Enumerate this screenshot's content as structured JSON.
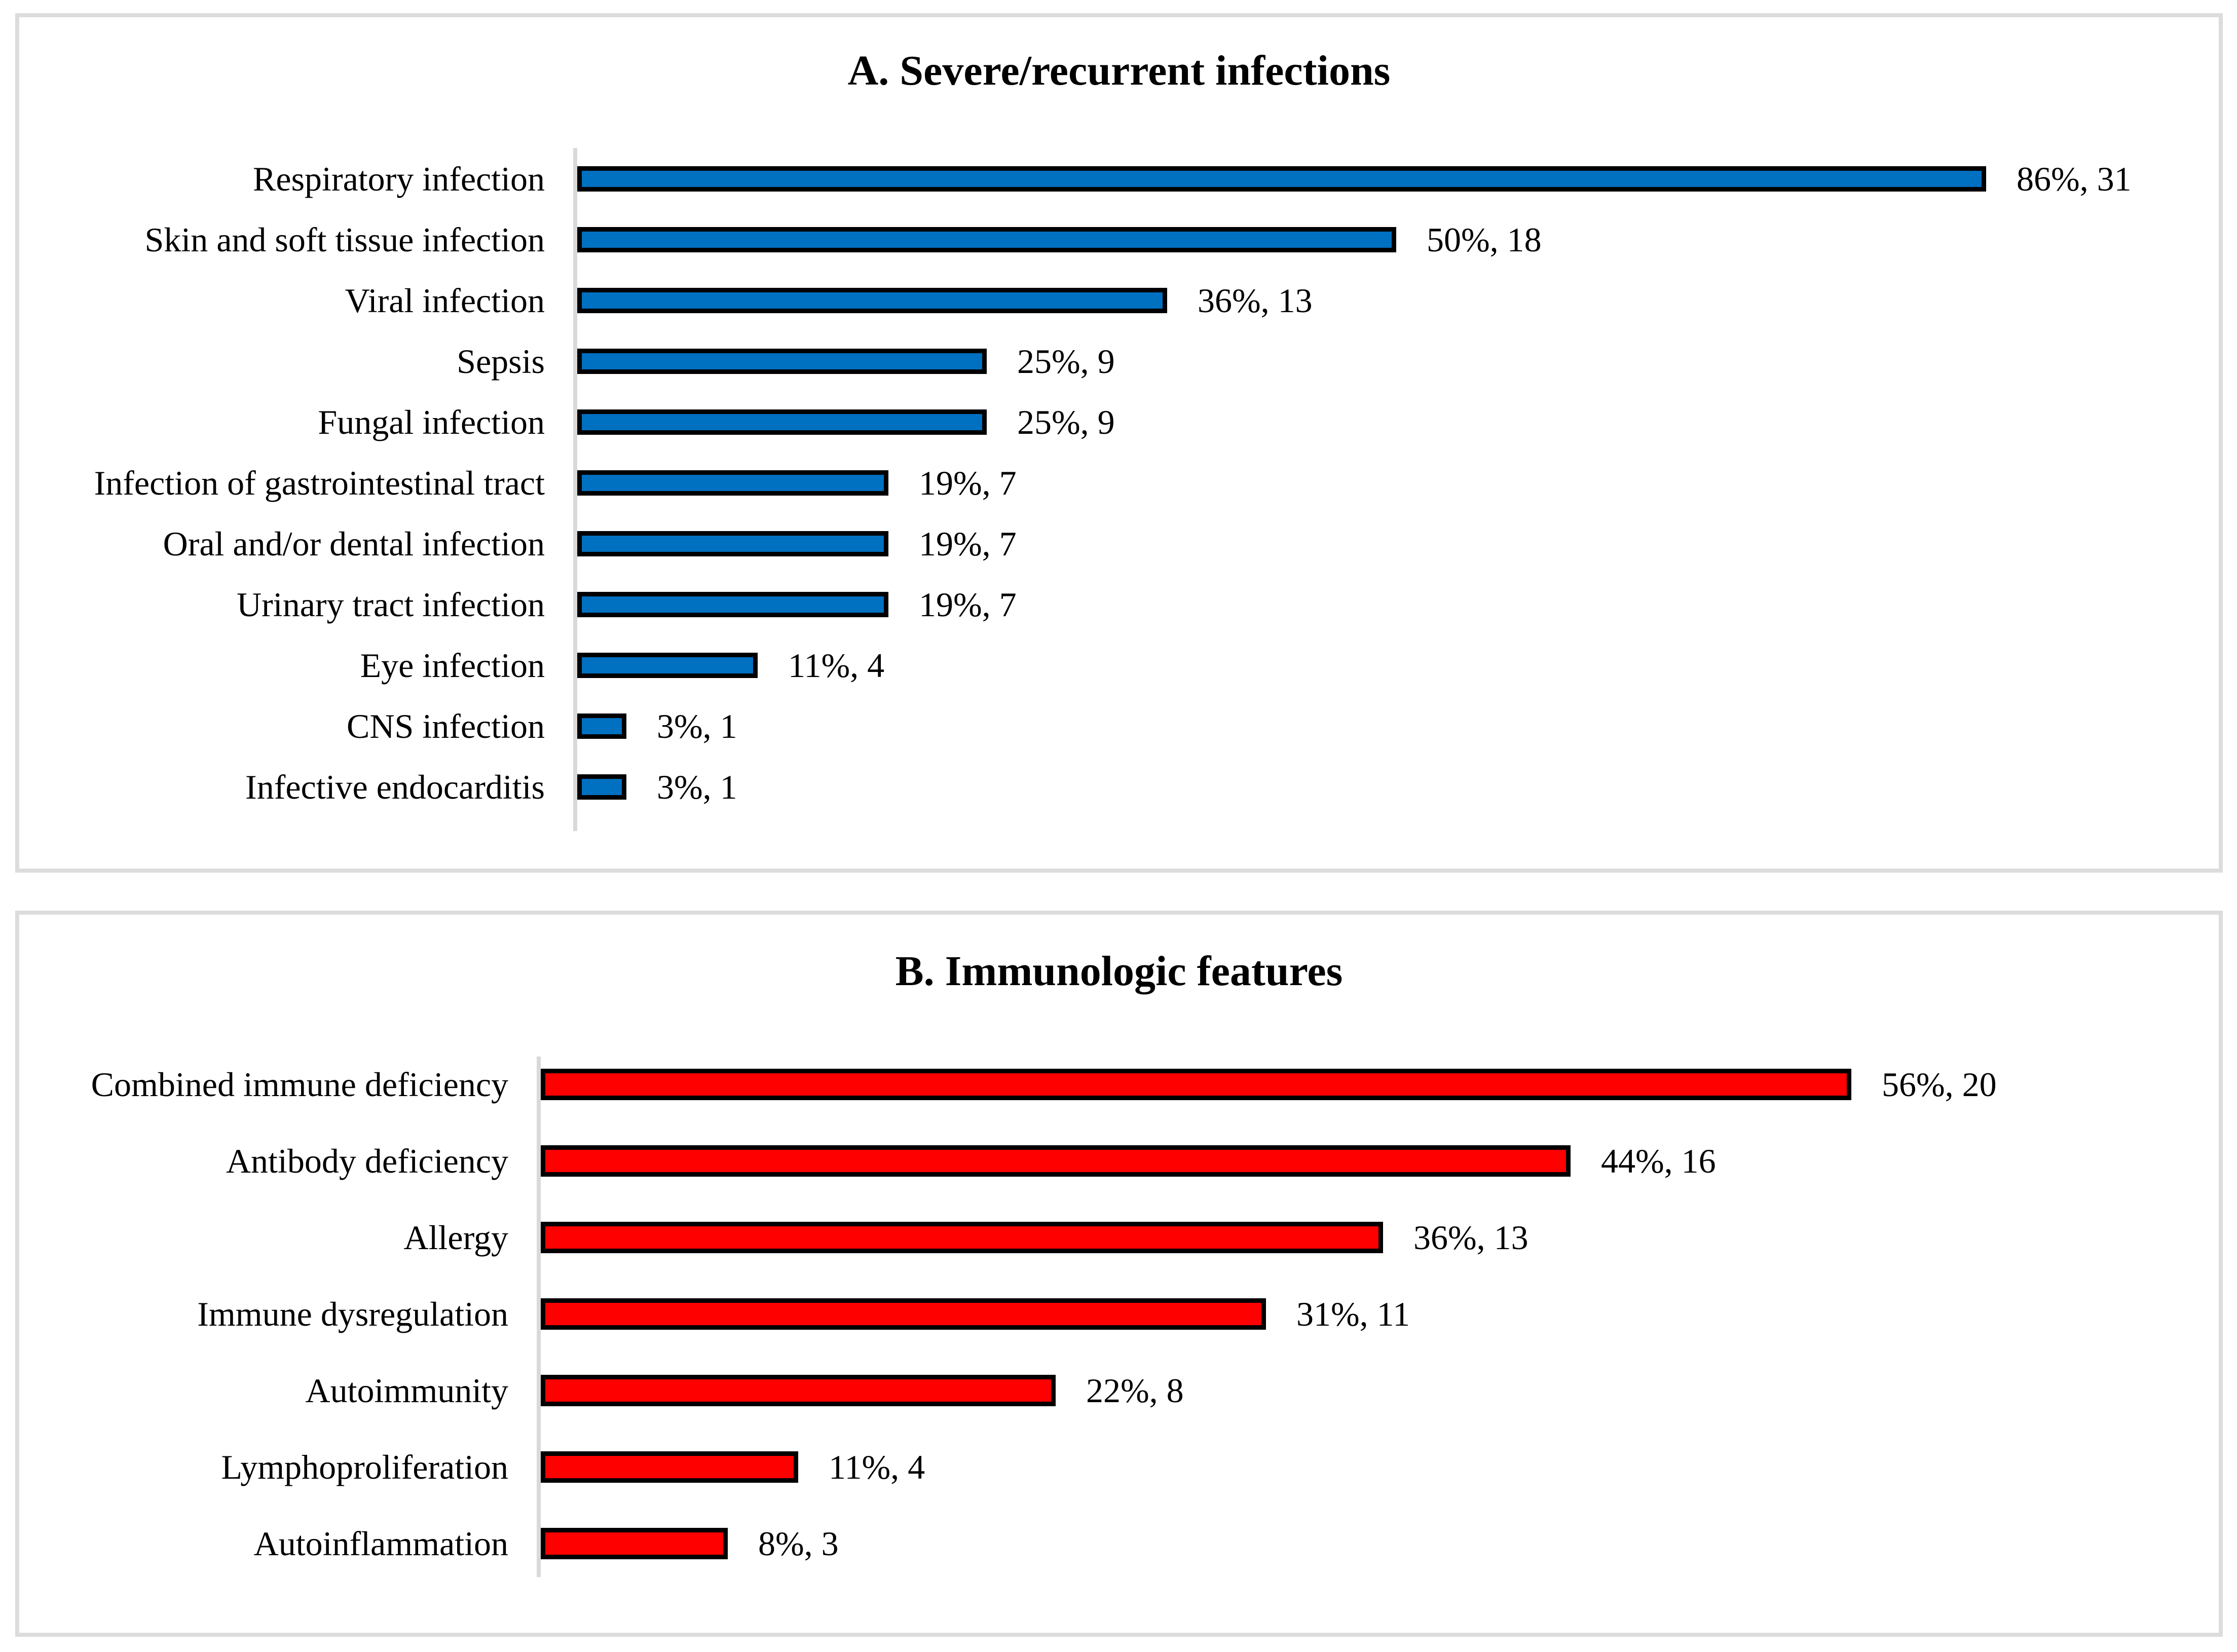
{
  "chart_data": [
    {
      "type": "bar",
      "orientation": "horizontal",
      "panel": "A",
      "title": "A. Severe/recurrent infections",
      "bar_color": "#0070C0",
      "bar_border_color": "#000000",
      "axis_line_color": "#D9D9D9",
      "categories": [
        "Respiratory infection",
        "Skin and soft tissue infection",
        "Viral infection",
        "Sepsis",
        "Fungal infection",
        "Infection of gastrointestinal tract",
        "Oral and/or dental infection",
        "Urinary tract infection",
        "Eye infection",
        "CNS infection",
        "Infective endocarditis"
      ],
      "values_percent": [
        86,
        50,
        36,
        25,
        25,
        19,
        19,
        19,
        11,
        3,
        3
      ],
      "counts": [
        31,
        18,
        13,
        9,
        9,
        7,
        7,
        7,
        4,
        1,
        1
      ],
      "data_labels": [
        "86%, 31",
        "50%, 18",
        "36%, 13",
        "25%, 9",
        "25%, 9",
        "19%, 7",
        "19%, 7",
        "19%, 7",
        "11%, 4",
        "3%, 1",
        "3%, 1"
      ],
      "xlim": [
        0,
        100
      ],
      "grid": false,
      "legend": false
    },
    {
      "type": "bar",
      "orientation": "horizontal",
      "panel": "B",
      "title": "B. Immunologic features",
      "bar_color": "#FF0000",
      "bar_border_color": "#000000",
      "axis_line_color": "#D9D9D9",
      "categories": [
        "Combined immune deficiency",
        "Antibody deficiency",
        "Allergy",
        "Immune dysregulation",
        "Autoimmunity",
        "Lymphoproliferation",
        "Autoinflammation"
      ],
      "values_percent": [
        56,
        44,
        36,
        31,
        22,
        11,
        8
      ],
      "counts": [
        20,
        16,
        13,
        11,
        8,
        4,
        3
      ],
      "data_labels": [
        "56%, 20",
        "44%, 16",
        "36%, 13",
        "31%, 11",
        "22%, 8",
        "11%, 4",
        "8%, 3"
      ],
      "xlim": [
        0,
        70
      ],
      "grid": false,
      "legend": false
    }
  ]
}
